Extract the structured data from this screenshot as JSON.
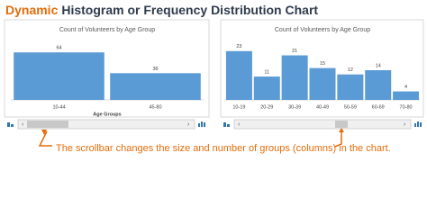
{
  "title_prefix": "Dynamic",
  "title": "Histogram or Frequency Distribution Chart",
  "caption": "The scrollbar changes the size and number of groups (columns) in the chart.",
  "chart_data": [
    {
      "type": "bar",
      "title": "Count of Volunteers by Age Group",
      "x_label": "Age Groups",
      "categories": [
        "10-44",
        "45-80"
      ],
      "values": [
        64,
        36
      ],
      "color": "#5b9bd5",
      "ylim": [
        0,
        80
      ]
    },
    {
      "type": "bar",
      "title": "Count of Volunteers by Age Group",
      "categories": [
        "10-19",
        "20-29",
        "30-39",
        "40-49",
        "50-59",
        "60-69",
        "70-80"
      ],
      "values": [
        23,
        11,
        21,
        15,
        12,
        14,
        4
      ],
      "color": "#5b9bd5",
      "ylim": [
        0,
        28
      ]
    }
  ]
}
